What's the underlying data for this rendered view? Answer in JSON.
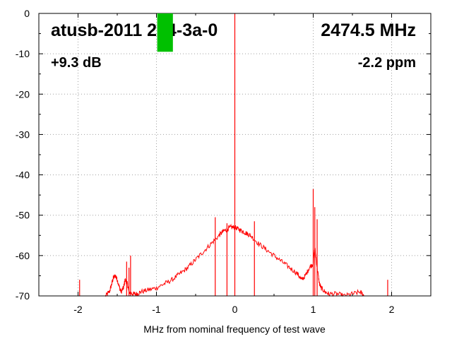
{
  "chart_data": {
    "type": "line",
    "title": "",
    "xlabel": "MHz from nominal frequency of test wave",
    "ylabel": "",
    "xlim": [
      -2.5,
      2.5
    ],
    "ylim": [
      -70,
      0
    ],
    "grid": true,
    "x_ticks": [
      -2,
      -1,
      0,
      1,
      2
    ],
    "y_ticks": [
      0,
      -10,
      -20,
      -30,
      -40,
      -50,
      -60,
      -70
    ],
    "annotations": {
      "device": "atusb-2011 214-3a-0",
      "frequency": "2474.5 MHz",
      "gain": "+9.3 dB",
      "offset": "-2.2 ppm"
    },
    "marker": {
      "color": "#00c000",
      "x_range": [
        -0.99,
        -0.79
      ],
      "y_range": [
        -9.5,
        0
      ]
    },
    "series": [
      {
        "color": "#ff0000",
        "x": [
          -1.65,
          -1.6,
          -1.57,
          -1.55,
          -1.52,
          -1.5,
          -1.47,
          -1.45,
          -1.42,
          -1.4,
          -1.37,
          -1.35,
          -1.3,
          -1.25,
          -1.2,
          -1.1,
          -1.0,
          -0.9,
          -0.8,
          -0.7,
          -0.6,
          -0.5,
          -0.4,
          -0.3,
          -0.2,
          -0.15,
          -0.1,
          -0.05,
          0.0,
          0.05,
          0.1,
          0.15,
          0.2,
          0.3,
          0.4,
          0.5,
          0.6,
          0.7,
          0.8,
          0.85,
          0.9,
          0.95,
          1.0,
          1.02,
          1.05,
          1.08,
          1.1,
          1.15,
          1.2,
          1.3,
          1.4,
          1.5,
          1.6,
          1.65
        ],
        "y": [
          -70,
          -69,
          -67,
          -65.5,
          -65,
          -66,
          -68,
          -69,
          -68,
          -66,
          -67,
          -69,
          -69.5,
          -69.5,
          -69,
          -68.5,
          -68,
          -67,
          -66,
          -64.5,
          -63,
          -61,
          -59,
          -57,
          -55,
          -54,
          -53.5,
          -53,
          -53,
          -53.5,
          -54,
          -54.5,
          -55,
          -57,
          -58.5,
          -60,
          -61.5,
          -63,
          -64.5,
          -66,
          -65,
          -63,
          -62,
          -58,
          -63,
          -67,
          -68,
          -69,
          -69.5,
          -69.5,
          -70,
          -69.5,
          -69,
          -70
        ]
      }
    ],
    "spikes": [
      {
        "x": -1.98,
        "y": -66
      },
      {
        "x": -1.38,
        "y": -61.5
      },
      {
        "x": -1.35,
        "y": -63
      },
      {
        "x": -1.33,
        "y": -60
      },
      {
        "x": -0.25,
        "y": -50.5
      },
      {
        "x": -0.1,
        "y": -52
      },
      {
        "x": 0.0,
        "y": 0
      },
      {
        "x": 0.25,
        "y": -51.5
      },
      {
        "x": 1.0,
        "y": -43.5
      },
      {
        "x": 1.02,
        "y": -48
      },
      {
        "x": 1.05,
        "y": -51
      },
      {
        "x": 1.95,
        "y": -66
      }
    ]
  }
}
